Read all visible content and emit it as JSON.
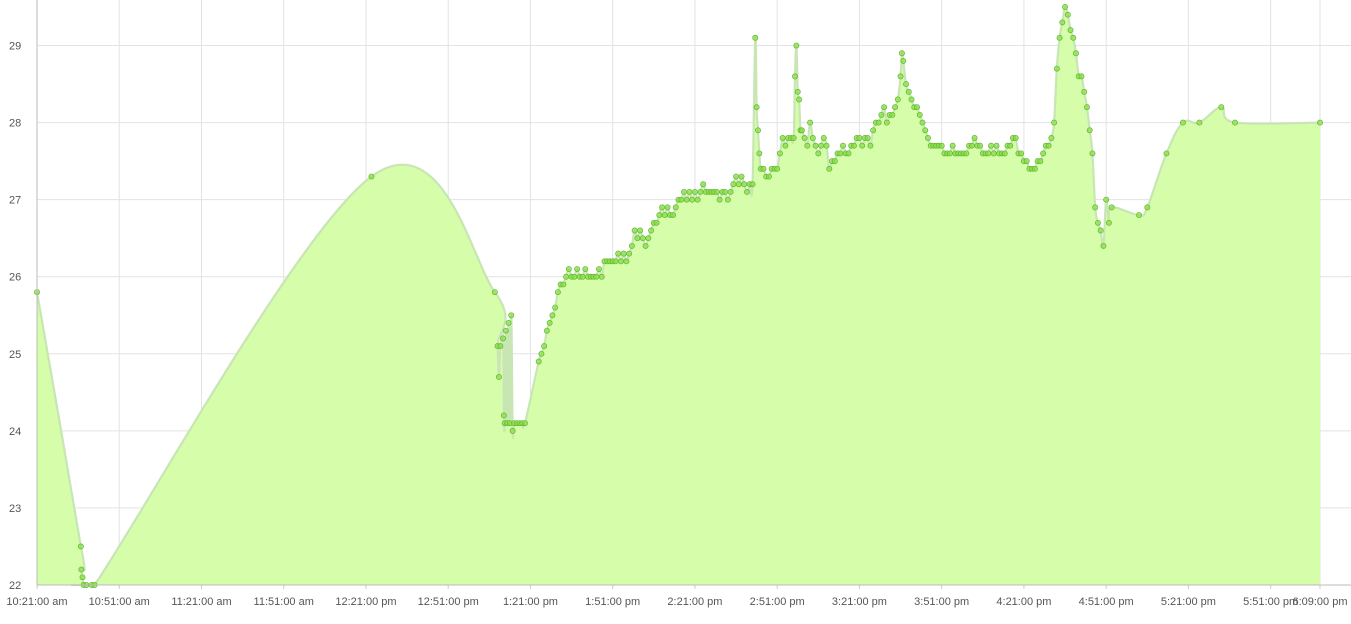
{
  "chart_data": {
    "type": "area",
    "title": "",
    "xlabel": "",
    "ylabel": "",
    "ylim": [
      22,
      29.5
    ],
    "grid": true,
    "legend": "none",
    "colors": {
      "fill": "#d6fdaa",
      "line": "#c8e6b4",
      "point": "#8bdd4a",
      "point_stroke": "#5fb82b"
    },
    "x_ticks": [
      {
        "t": 0,
        "label": "10:21:00 am"
      },
      {
        "t": 30,
        "label": "10:51:00 am"
      },
      {
        "t": 60,
        "label": "11:21:00 am"
      },
      {
        "t": 90,
        "label": "11:51:00 am"
      },
      {
        "t": 120,
        "label": "12:21:00 pm"
      },
      {
        "t": 150,
        "label": "12:51:00 pm"
      },
      {
        "t": 180,
        "label": "1:21:00 pm"
      },
      {
        "t": 210,
        "label": "1:51:00 pm"
      },
      {
        "t": 240,
        "label": "2:21:00 pm"
      },
      {
        "t": 270,
        "label": "2:51:00 pm"
      },
      {
        "t": 300,
        "label": "3:21:00 pm"
      },
      {
        "t": 330,
        "label": "3:51:00 pm"
      },
      {
        "t": 360,
        "label": "4:21:00 pm"
      },
      {
        "t": 390,
        "label": "4:51:00 pm"
      },
      {
        "t": 420,
        "label": "5:21:00 pm"
      },
      {
        "t": 450,
        "label": "5:51:00 pm"
      },
      {
        "t": 468,
        "label": "6:09:00 pm"
      }
    ],
    "y_ticks": [
      22,
      23,
      24,
      25,
      26,
      27,
      28,
      29
    ],
    "series": [
      {
        "points": [
          [
            0,
            25.8
          ],
          [
            16,
            22.5
          ],
          [
            16.2,
            22.2
          ],
          [
            16.6,
            22.1
          ],
          [
            17,
            22.0
          ],
          [
            18,
            22.0
          ],
          [
            20,
            22.0
          ],
          [
            21,
            22.0
          ],
          [
            122,
            27.3
          ],
          [
            167,
            25.8
          ],
          [
            168,
            25.1
          ],
          [
            168.5,
            24.7
          ],
          [
            169,
            25.1
          ],
          [
            170,
            25.2
          ],
          [
            170.3,
            24.2
          ],
          [
            170.6,
            24.1
          ],
          [
            171,
            25.3
          ],
          [
            171.5,
            24.1
          ],
          [
            172,
            25.4
          ],
          [
            172.5,
            24.1
          ],
          [
            173,
            25.5
          ],
          [
            173.5,
            24.0
          ],
          [
            174,
            24.1
          ],
          [
            175,
            24.1
          ],
          [
            176,
            24.1
          ],
          [
            177,
            24.1
          ],
          [
            178,
            24.1
          ],
          [
            183,
            24.9
          ],
          [
            184,
            25.0
          ],
          [
            185,
            25.1
          ],
          [
            186,
            25.3
          ],
          [
            187,
            25.4
          ],
          [
            188,
            25.5
          ],
          [
            189,
            25.6
          ],
          [
            190,
            25.8
          ],
          [
            191,
            25.9
          ],
          [
            192,
            25.9
          ],
          [
            193,
            26.0
          ],
          [
            194,
            26.1
          ],
          [
            195,
            26.0
          ],
          [
            196,
            26.0
          ],
          [
            197,
            26.1
          ],
          [
            198,
            26.0
          ],
          [
            199,
            26.0
          ],
          [
            200,
            26.1
          ],
          [
            201,
            26.0
          ],
          [
            202,
            26.0
          ],
          [
            203,
            26.0
          ],
          [
            204,
            26.0
          ],
          [
            205,
            26.1
          ],
          [
            206,
            26.0
          ],
          [
            207,
            26.2
          ],
          [
            208,
            26.2
          ],
          [
            209,
            26.2
          ],
          [
            210,
            26.2
          ],
          [
            211,
            26.2
          ],
          [
            212,
            26.3
          ],
          [
            213,
            26.2
          ],
          [
            214,
            26.3
          ],
          [
            215,
            26.2
          ],
          [
            216,
            26.3
          ],
          [
            217,
            26.4
          ],
          [
            218,
            26.6
          ],
          [
            219,
            26.5
          ],
          [
            220,
            26.6
          ],
          [
            221,
            26.5
          ],
          [
            222,
            26.4
          ],
          [
            223,
            26.5
          ],
          [
            224,
            26.6
          ],
          [
            225,
            26.7
          ],
          [
            226,
            26.7
          ],
          [
            227,
            26.8
          ],
          [
            228,
            26.9
          ],
          [
            229,
            26.8
          ],
          [
            230,
            26.9
          ],
          [
            231,
            26.8
          ],
          [
            232,
            26.8
          ],
          [
            233,
            26.9
          ],
          [
            234,
            27.0
          ],
          [
            235,
            27.0
          ],
          [
            236,
            27.1
          ],
          [
            237,
            27.0
          ],
          [
            238,
            27.1
          ],
          [
            239,
            27.0
          ],
          [
            240,
            27.1
          ],
          [
            241,
            27.0
          ],
          [
            242,
            27.1
          ],
          [
            243,
            27.2
          ],
          [
            244,
            27.1
          ],
          [
            245,
            27.1
          ],
          [
            246,
            27.1
          ],
          [
            247,
            27.1
          ],
          [
            248,
            27.1
          ],
          [
            249,
            27.0
          ],
          [
            250,
            27.1
          ],
          [
            251,
            27.1
          ],
          [
            252,
            27.0
          ],
          [
            253,
            27.1
          ],
          [
            254,
            27.2
          ],
          [
            255,
            27.3
          ],
          [
            256,
            27.2
          ],
          [
            257,
            27.3
          ],
          [
            258,
            27.2
          ],
          [
            259,
            27.1
          ],
          [
            260,
            27.2
          ],
          [
            261,
            27.2
          ],
          [
            262,
            29.1
          ],
          [
            262.5,
            28.2
          ],
          [
            263,
            27.9
          ],
          [
            263.5,
            27.6
          ],
          [
            264,
            27.4
          ],
          [
            265,
            27.4
          ],
          [
            266,
            27.3
          ],
          [
            267,
            27.3
          ],
          [
            268,
            27.4
          ],
          [
            269,
            27.4
          ],
          [
            270,
            27.4
          ],
          [
            271,
            27.6
          ],
          [
            272,
            27.8
          ],
          [
            273,
            27.7
          ],
          [
            274,
            27.8
          ],
          [
            275,
            27.8
          ],
          [
            276,
            27.8
          ],
          [
            276.5,
            28.6
          ],
          [
            277,
            29.0
          ],
          [
            277.5,
            28.4
          ],
          [
            278,
            28.3
          ],
          [
            278.5,
            27.9
          ],
          [
            279,
            27.9
          ],
          [
            280,
            27.8
          ],
          [
            281,
            27.7
          ],
          [
            282,
            28.0
          ],
          [
            283,
            27.8
          ],
          [
            284,
            27.7
          ],
          [
            285,
            27.6
          ],
          [
            286,
            27.7
          ],
          [
            287,
            27.8
          ],
          [
            288,
            27.7
          ],
          [
            289,
            27.4
          ],
          [
            290,
            27.5
          ],
          [
            291,
            27.5
          ],
          [
            292,
            27.6
          ],
          [
            293,
            27.6
          ],
          [
            294,
            27.7
          ],
          [
            295,
            27.6
          ],
          [
            296,
            27.6
          ],
          [
            297,
            27.7
          ],
          [
            298,
            27.7
          ],
          [
            299,
            27.8
          ],
          [
            300,
            27.8
          ],
          [
            301,
            27.7
          ],
          [
            302,
            27.8
          ],
          [
            303,
            27.8
          ],
          [
            304,
            27.7
          ],
          [
            305,
            27.9
          ],
          [
            306,
            28.0
          ],
          [
            307,
            28.0
          ],
          [
            308,
            28.1
          ],
          [
            309,
            28.2
          ],
          [
            310,
            28.0
          ],
          [
            311,
            28.1
          ],
          [
            312,
            28.1
          ],
          [
            313,
            28.2
          ],
          [
            314,
            28.3
          ],
          [
            315,
            28.6
          ],
          [
            315.5,
            28.9
          ],
          [
            316,
            28.8
          ],
          [
            317,
            28.5
          ],
          [
            318,
            28.4
          ],
          [
            319,
            28.3
          ],
          [
            320,
            28.2
          ],
          [
            321,
            28.2
          ],
          [
            322,
            28.1
          ],
          [
            323,
            28.0
          ],
          [
            324,
            27.9
          ],
          [
            325,
            27.8
          ],
          [
            326,
            27.7
          ],
          [
            327,
            27.7
          ],
          [
            328,
            27.7
          ],
          [
            329,
            27.7
          ],
          [
            330,
            27.7
          ],
          [
            331,
            27.6
          ],
          [
            332,
            27.6
          ],
          [
            333,
            27.6
          ],
          [
            334,
            27.7
          ],
          [
            335,
            27.6
          ],
          [
            336,
            27.6
          ],
          [
            337,
            27.6
          ],
          [
            338,
            27.6
          ],
          [
            339,
            27.6
          ],
          [
            340,
            27.7
          ],
          [
            341,
            27.7
          ],
          [
            342,
            27.8
          ],
          [
            343,
            27.7
          ],
          [
            344,
            27.7
          ],
          [
            345,
            27.6
          ],
          [
            346,
            27.6
          ],
          [
            347,
            27.6
          ],
          [
            348,
            27.7
          ],
          [
            349,
            27.6
          ],
          [
            350,
            27.7
          ],
          [
            351,
            27.6
          ],
          [
            352,
            27.6
          ],
          [
            353,
            27.6
          ],
          [
            354,
            27.7
          ],
          [
            355,
            27.7
          ],
          [
            356,
            27.8
          ],
          [
            357,
            27.8
          ],
          [
            358,
            27.6
          ],
          [
            359,
            27.6
          ],
          [
            360,
            27.5
          ],
          [
            361,
            27.5
          ],
          [
            362,
            27.4
          ],
          [
            363,
            27.4
          ],
          [
            364,
            27.4
          ],
          [
            365,
            27.5
          ],
          [
            366,
            27.5
          ],
          [
            367,
            27.6
          ],
          [
            368,
            27.7
          ],
          [
            369,
            27.7
          ],
          [
            370,
            27.8
          ],
          [
            371,
            28.0
          ],
          [
            372,
            28.7
          ],
          [
            373,
            29.1
          ],
          [
            374,
            29.3
          ],
          [
            375,
            29.5
          ],
          [
            376,
            29.4
          ],
          [
            377,
            29.2
          ],
          [
            378,
            29.1
          ],
          [
            379,
            28.9
          ],
          [
            380,
            28.6
          ],
          [
            381,
            28.6
          ],
          [
            382,
            28.4
          ],
          [
            383,
            28.2
          ],
          [
            384,
            27.9
          ],
          [
            385,
            27.6
          ],
          [
            386,
            26.9
          ],
          [
            387,
            26.7
          ],
          [
            388,
            26.6
          ],
          [
            389,
            26.4
          ],
          [
            390,
            27.0
          ],
          [
            391,
            26.7
          ],
          [
            392,
            26.9
          ],
          [
            402,
            26.8
          ],
          [
            405,
            26.9
          ],
          [
            412,
            27.6
          ],
          [
            418,
            28.0
          ],
          [
            424,
            28.0
          ],
          [
            432,
            28.2
          ],
          [
            437,
            28.0
          ],
          [
            468,
            28.0
          ]
        ]
      }
    ]
  }
}
